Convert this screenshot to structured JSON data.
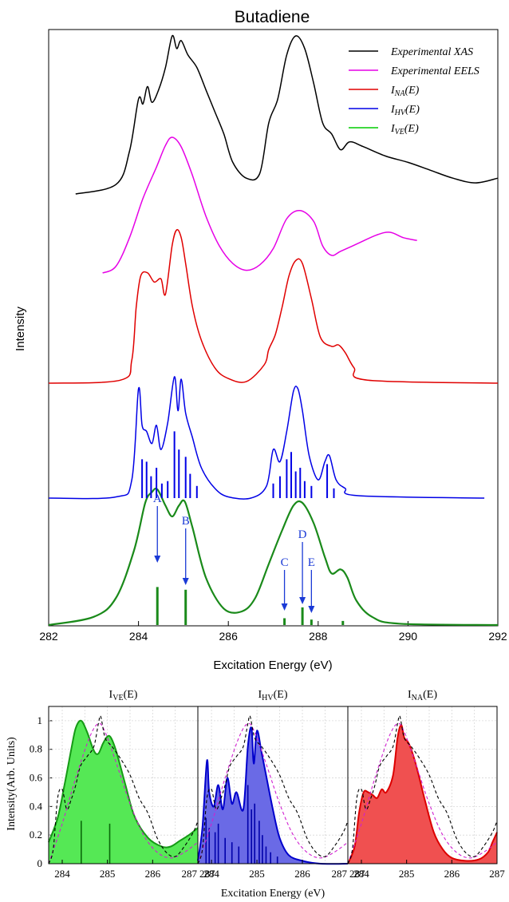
{
  "chart_data": [
    {
      "type": "line",
      "title": "Butadiene",
      "xlabel": "Excitation Energy (eV)",
      "ylabel": "Intensity",
      "xlim": [
        282,
        292
      ],
      "xticks": [
        "282",
        "284",
        "286",
        "288",
        "290",
        "292"
      ],
      "legend_position": "top-right",
      "legend": [
        {
          "label": "Experimental  XAS",
          "main": "",
          "sub": "",
          "tail": "",
          "color": "#000000"
        },
        {
          "label": "Experimental EELS",
          "main": "",
          "sub": "",
          "tail": "",
          "color": "#e600e6"
        },
        {
          "label": "",
          "main": "I",
          "sub": "NA",
          "tail": "(E)",
          "color": "#e00000"
        },
        {
          "label": "",
          "main": "I",
          "sub": "HV",
          "tail": "(E)",
          "color": "#0000e6"
        },
        {
          "label": "",
          "main": "I",
          "sub": "VE",
          "tail": "(E)",
          "color": "#00cc00"
        }
      ],
      "series": [
        {
          "name": "Experimental  XAS",
          "color": "#000000",
          "x": [
            282.6,
            283.5,
            283.8,
            284.0,
            284.1,
            284.2,
            284.3,
            284.45,
            284.6,
            284.75,
            284.85,
            284.95,
            285.1,
            285.3,
            285.5,
            285.7,
            285.9,
            286.1,
            286.4,
            286.7,
            286.9,
            287.1,
            287.3,
            287.5,
            287.7,
            287.9,
            288.1,
            288.3,
            288.5,
            288.7,
            289.0,
            289.5,
            290.0,
            290.5,
            291.0,
            291.5,
            292.0
          ],
          "y": [
            0.0,
            0.06,
            0.27,
            0.6,
            0.57,
            0.68,
            0.58,
            0.66,
            0.8,
            1.0,
            0.92,
            0.97,
            0.88,
            0.8,
            0.66,
            0.52,
            0.38,
            0.2,
            0.1,
            0.13,
            0.45,
            0.6,
            0.88,
            1.0,
            0.92,
            0.7,
            0.45,
            0.38,
            0.28,
            0.33,
            0.3,
            0.24,
            0.2,
            0.15,
            0.1,
            0.07,
            0.1
          ]
        },
        {
          "name": "Experimental EELS",
          "color": "#e600e6",
          "x": [
            283.2,
            283.5,
            283.8,
            284.1,
            284.4,
            284.6,
            284.75,
            284.95,
            285.2,
            285.5,
            285.8,
            286.1,
            286.4,
            286.7,
            287.0,
            287.3,
            287.6,
            287.9,
            288.1,
            288.3,
            288.5,
            288.9,
            289.3,
            289.6,
            289.9,
            290.2
          ],
          "y": [
            0.0,
            0.05,
            0.26,
            0.55,
            0.78,
            0.94,
            1.0,
            0.93,
            0.72,
            0.42,
            0.2,
            0.07,
            0.02,
            0.06,
            0.18,
            0.4,
            0.46,
            0.38,
            0.2,
            0.13,
            0.16,
            0.22,
            0.28,
            0.3,
            0.26,
            0.24
          ]
        },
        {
          "name": "",
          "color": "#e00000",
          "x": [
            282.0,
            283.6,
            283.85,
            283.95,
            284.05,
            284.2,
            284.35,
            284.5,
            284.6,
            284.75,
            284.85,
            284.95,
            285.05,
            285.2,
            285.4,
            285.7,
            286.0,
            286.4,
            286.8,
            286.9,
            287.05,
            287.2,
            287.35,
            287.5,
            287.65,
            287.85,
            288.05,
            288.3,
            288.45,
            288.6,
            288.8,
            289.1,
            292.0
          ],
          "y": [
            0.0,
            0.02,
            0.15,
            0.5,
            0.7,
            0.72,
            0.66,
            0.68,
            0.58,
            0.9,
            1.0,
            0.95,
            0.78,
            0.5,
            0.28,
            0.1,
            0.03,
            0.01,
            0.12,
            0.22,
            0.32,
            0.5,
            0.7,
            0.8,
            0.78,
            0.55,
            0.3,
            0.24,
            0.25,
            0.2,
            0.1,
            0.02,
            0.0
          ]
        },
        {
          "name": "",
          "color": "#0000e6",
          "x": [
            282.0,
            283.5,
            283.85,
            284.0,
            284.08,
            284.18,
            284.3,
            284.4,
            284.5,
            284.65,
            284.8,
            284.88,
            284.95,
            285.05,
            285.2,
            285.4,
            285.7,
            286.0,
            286.5,
            286.85,
            287.0,
            287.15,
            287.3,
            287.45,
            287.55,
            287.65,
            287.8,
            288.0,
            288.15,
            288.25,
            288.4,
            288.6,
            288.9,
            291.7
          ],
          "y": [
            0.0,
            0.01,
            0.15,
            0.9,
            0.6,
            0.55,
            0.45,
            0.6,
            0.4,
            0.62,
            1.0,
            0.72,
            0.98,
            0.7,
            0.5,
            0.25,
            0.08,
            0.01,
            0.0,
            0.1,
            0.4,
            0.3,
            0.55,
            0.88,
            0.9,
            0.72,
            0.35,
            0.15,
            0.3,
            0.35,
            0.15,
            0.08,
            0.02,
            0.0
          ],
          "sticks_x": [
            284.08,
            284.18,
            284.28,
            284.4,
            284.52,
            284.65,
            284.8,
            284.9,
            285.05,
            285.15,
            285.3,
            287.0,
            287.15,
            287.3,
            287.4,
            287.5,
            287.6,
            287.7,
            287.85,
            288.2,
            288.35
          ],
          "sticks_y": [
            0.32,
            0.3,
            0.18,
            0.25,
            0.12,
            0.14,
            0.55,
            0.4,
            0.34,
            0.2,
            0.1,
            0.12,
            0.18,
            0.32,
            0.38,
            0.22,
            0.25,
            0.14,
            0.1,
            0.28,
            0.08
          ]
        },
        {
          "name": "",
          "color": "#1a8a1a",
          "x": [
            282.0,
            283.0,
            283.5,
            283.9,
            284.15,
            284.3,
            284.42,
            284.6,
            284.75,
            284.9,
            285.03,
            285.2,
            285.5,
            285.9,
            286.3,
            286.6,
            286.9,
            287.2,
            287.45,
            287.65,
            287.9,
            288.15,
            288.3,
            288.5,
            288.65,
            288.85,
            289.2,
            289.8,
            292.0
          ],
          "y": [
            0.0,
            0.06,
            0.2,
            0.55,
            0.9,
            0.98,
            1.0,
            0.88,
            0.8,
            0.88,
            0.91,
            0.72,
            0.35,
            0.12,
            0.1,
            0.2,
            0.45,
            0.7,
            0.88,
            0.9,
            0.75,
            0.5,
            0.38,
            0.41,
            0.35,
            0.18,
            0.06,
            0.01,
            0.0
          ],
          "sticks_x": [
            284.42,
            285.05,
            287.25,
            287.65,
            287.85,
            288.55
          ],
          "sticks_y": [
            0.28,
            0.26,
            0.05,
            0.13,
            0.04,
            0.03
          ]
        }
      ],
      "annotations": [
        {
          "label": "A",
          "x": 284.42
        },
        {
          "label": "B",
          "x": 285.05
        },
        {
          "label": "C",
          "x": 287.25
        },
        {
          "label": "D",
          "x": 287.65
        },
        {
          "label": "E",
          "x": 287.85
        }
      ]
    },
    {
      "type": "area",
      "ylabel": "Intensity(Arb. Units)",
      "xlabel": "Excitation Energy (eV)",
      "ylim": [
        0,
        1.1
      ],
      "yticks": [
        "0",
        "0.2",
        "0.4",
        "0.6",
        "0.8",
        "1"
      ],
      "grid": true,
      "panels": [
        {
          "title_main": "I",
          "title_sub": "VE",
          "title_tail": "(E)",
          "xlim": [
            283.7,
            287.0
          ],
          "xticks": [
            "284",
            "285",
            "286",
            "287"
          ],
          "fill_color": "#55e855",
          "line_color": "#159a15",
          "x": [
            283.7,
            283.9,
            284.05,
            284.2,
            284.3,
            284.42,
            284.55,
            284.7,
            284.8,
            284.9,
            285.0,
            285.08,
            285.2,
            285.4,
            285.6,
            285.9,
            286.2,
            286.4,
            286.6,
            286.8,
            287.0
          ],
          "y": [
            0.15,
            0.32,
            0.55,
            0.8,
            0.95,
            1.0,
            0.92,
            0.79,
            0.77,
            0.84,
            0.89,
            0.88,
            0.78,
            0.55,
            0.33,
            0.18,
            0.12,
            0.12,
            0.16,
            0.2,
            0.25
          ],
          "sticks_x": [
            284.42,
            285.05
          ],
          "sticks_y": [
            0.3,
            0.28
          ],
          "xas_x": [
            283.7,
            283.8,
            283.9,
            284.0,
            284.1,
            284.2,
            284.3,
            284.4,
            284.55,
            284.7,
            284.8,
            284.85,
            284.95,
            285.1,
            285.3,
            285.5,
            285.7,
            285.9,
            286.1,
            286.3,
            286.5,
            286.7,
            286.9,
            287.0
          ],
          "xas_y": [
            0.0,
            0.1,
            0.46,
            0.52,
            0.38,
            0.45,
            0.55,
            0.68,
            0.75,
            0.82,
            0.98,
            1.03,
            0.88,
            0.82,
            0.73,
            0.62,
            0.46,
            0.35,
            0.18,
            0.08,
            0.05,
            0.12,
            0.22,
            0.3
          ],
          "eels_x": [
            283.7,
            284.0,
            284.3,
            284.6,
            284.8,
            284.95,
            285.2,
            285.5,
            285.8,
            286.1,
            286.4,
            286.7,
            287.0
          ],
          "eels_y": [
            0.0,
            0.28,
            0.6,
            0.88,
            0.98,
            0.92,
            0.7,
            0.42,
            0.2,
            0.08,
            0.04,
            0.08,
            0.15
          ]
        },
        {
          "title_main": "I",
          "title_sub": "HV",
          "title_tail": "(E)",
          "xlim": [
            283.7,
            287.0
          ],
          "xticks": [
            "284",
            "285",
            "286",
            "287"
          ],
          "fill_color": "#6a6ae6",
          "line_color": "#0000cc",
          "x": [
            283.7,
            283.8,
            283.9,
            283.95,
            284.05,
            284.15,
            284.25,
            284.35,
            284.45,
            284.55,
            284.7,
            284.8,
            284.88,
            284.93,
            285.0,
            285.1,
            285.2,
            285.35,
            285.5,
            285.7,
            286.0,
            286.4,
            287.0
          ],
          "y": [
            0.02,
            0.25,
            0.72,
            0.5,
            0.4,
            0.55,
            0.38,
            0.6,
            0.42,
            0.5,
            0.38,
            0.82,
            0.95,
            0.7,
            0.93,
            0.78,
            0.62,
            0.38,
            0.18,
            0.06,
            0.02,
            0.0,
            0.0
          ],
          "sticks_x": [
            283.88,
            283.95,
            284.08,
            284.15,
            284.3,
            284.45,
            284.6,
            284.8,
            284.88,
            284.95,
            285.05,
            285.12,
            285.2,
            285.3,
            285.45
          ],
          "sticks_y": [
            0.32,
            0.25,
            0.22,
            0.28,
            0.18,
            0.15,
            0.12,
            0.55,
            0.38,
            0.42,
            0.3,
            0.2,
            0.12,
            0.08,
            0.05
          ],
          "xas_x": [
            283.7,
            283.8,
            283.9,
            284.0,
            284.1,
            284.2,
            284.3,
            284.4,
            284.55,
            284.7,
            284.8,
            284.85,
            284.95,
            285.1,
            285.3,
            285.5,
            285.7,
            285.9,
            286.1,
            286.3,
            286.5,
            286.7,
            286.9,
            287.0
          ],
          "xas_y": [
            0.0,
            0.1,
            0.46,
            0.52,
            0.38,
            0.45,
            0.55,
            0.68,
            0.75,
            0.82,
            0.98,
            1.03,
            0.88,
            0.82,
            0.73,
            0.62,
            0.46,
            0.35,
            0.18,
            0.08,
            0.05,
            0.12,
            0.22,
            0.3
          ],
          "eels_x": [
            283.7,
            284.0,
            284.3,
            284.6,
            284.8,
            284.95,
            285.2,
            285.5,
            285.8,
            286.1,
            286.4,
            286.7,
            287.0
          ],
          "eels_y": [
            0.0,
            0.28,
            0.6,
            0.88,
            0.98,
            0.92,
            0.7,
            0.42,
            0.2,
            0.08,
            0.04,
            0.08,
            0.15
          ]
        },
        {
          "title_main": "I",
          "title_sub": "NA",
          "title_tail": "(E)",
          "xlim": [
            283.7,
            287.0
          ],
          "xticks": [
            "284",
            "285",
            "286",
            "287"
          ],
          "fill_color": "#f05050",
          "line_color": "#dd0000",
          "x": [
            283.7,
            283.85,
            283.95,
            284.05,
            284.15,
            284.25,
            284.35,
            284.45,
            284.55,
            284.7,
            284.8,
            284.88,
            284.95,
            285.05,
            285.2,
            285.4,
            285.6,
            285.8,
            286.0,
            286.3,
            286.6,
            286.8,
            286.9,
            287.0
          ],
          "y": [
            0.0,
            0.12,
            0.36,
            0.5,
            0.5,
            0.48,
            0.46,
            0.52,
            0.5,
            0.62,
            0.88,
            0.97,
            0.88,
            0.84,
            0.7,
            0.45,
            0.22,
            0.1,
            0.04,
            0.02,
            0.03,
            0.08,
            0.15,
            0.22
          ],
          "xas_x": [
            283.7,
            283.8,
            283.9,
            284.0,
            284.1,
            284.2,
            284.3,
            284.4,
            284.55,
            284.7,
            284.8,
            284.85,
            284.95,
            285.1,
            285.3,
            285.5,
            285.7,
            285.9,
            286.1,
            286.3,
            286.5,
            286.7,
            286.9,
            287.0
          ],
          "xas_y": [
            0.0,
            0.1,
            0.46,
            0.52,
            0.38,
            0.45,
            0.55,
            0.68,
            0.75,
            0.82,
            0.98,
            1.03,
            0.88,
            0.82,
            0.73,
            0.62,
            0.46,
            0.35,
            0.18,
            0.08,
            0.05,
            0.12,
            0.22,
            0.3
          ],
          "eels_x": [
            283.7,
            284.0,
            284.3,
            284.6,
            284.8,
            284.95,
            285.2,
            285.5,
            285.8,
            286.1,
            286.4,
            286.7,
            287.0
          ],
          "eels_y": [
            0.0,
            0.28,
            0.6,
            0.88,
            0.98,
            0.92,
            0.7,
            0.42,
            0.2,
            0.08,
            0.04,
            0.08,
            0.15
          ]
        }
      ]
    }
  ]
}
